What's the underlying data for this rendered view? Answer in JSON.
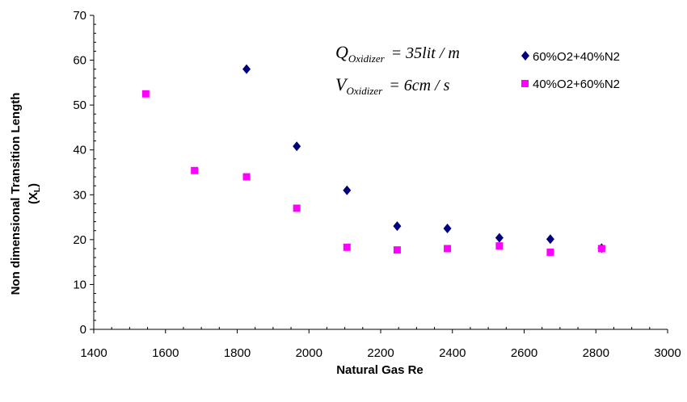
{
  "chart_data": {
    "type": "scatter",
    "title": "",
    "xlabel": "Natural Gas Re",
    "ylabel_line1": "Non dimensional Transition Length",
    "ylabel_line2_main": "(X",
    "ylabel_line2_sub": "L",
    "ylabel_line2_end": ")",
    "xlim": [
      1400,
      3000
    ],
    "ylim": [
      0,
      70
    ],
    "xticks": [
      1400,
      1600,
      1800,
      2000,
      2200,
      2400,
      2600,
      2800,
      3000
    ],
    "yticks": [
      0,
      10,
      20,
      30,
      40,
      50,
      60,
      70
    ],
    "grid": false,
    "legend_position": "top-right",
    "series": [
      {
        "name": "60%O2+40%N2",
        "marker": "diamond",
        "color": "#00007f",
        "x": [
          1826,
          1966,
          2106,
          2246,
          2386,
          2531,
          2673,
          2816
        ],
        "y": [
          58,
          40.8,
          31,
          23,
          22.5,
          20.4,
          20.1,
          18.1
        ]
      },
      {
        "name": "40%O2+60%N2",
        "marker": "square",
        "color": "#ff00ff",
        "x": [
          1545,
          1681,
          1826,
          1966,
          2106,
          2246,
          2386,
          2531,
          2673,
          2816
        ],
        "y": [
          52.5,
          35.4,
          34,
          27,
          18.3,
          17.7,
          18,
          18.6,
          17.2,
          18
        ]
      }
    ],
    "annotation": {
      "q_main": "Q",
      "q_sub": "Oxidizer",
      "q_rest": "= 35lit / m",
      "v_main": "V",
      "v_sub": "Oxidizer",
      "v_rest": "= 6cm / s"
    }
  }
}
